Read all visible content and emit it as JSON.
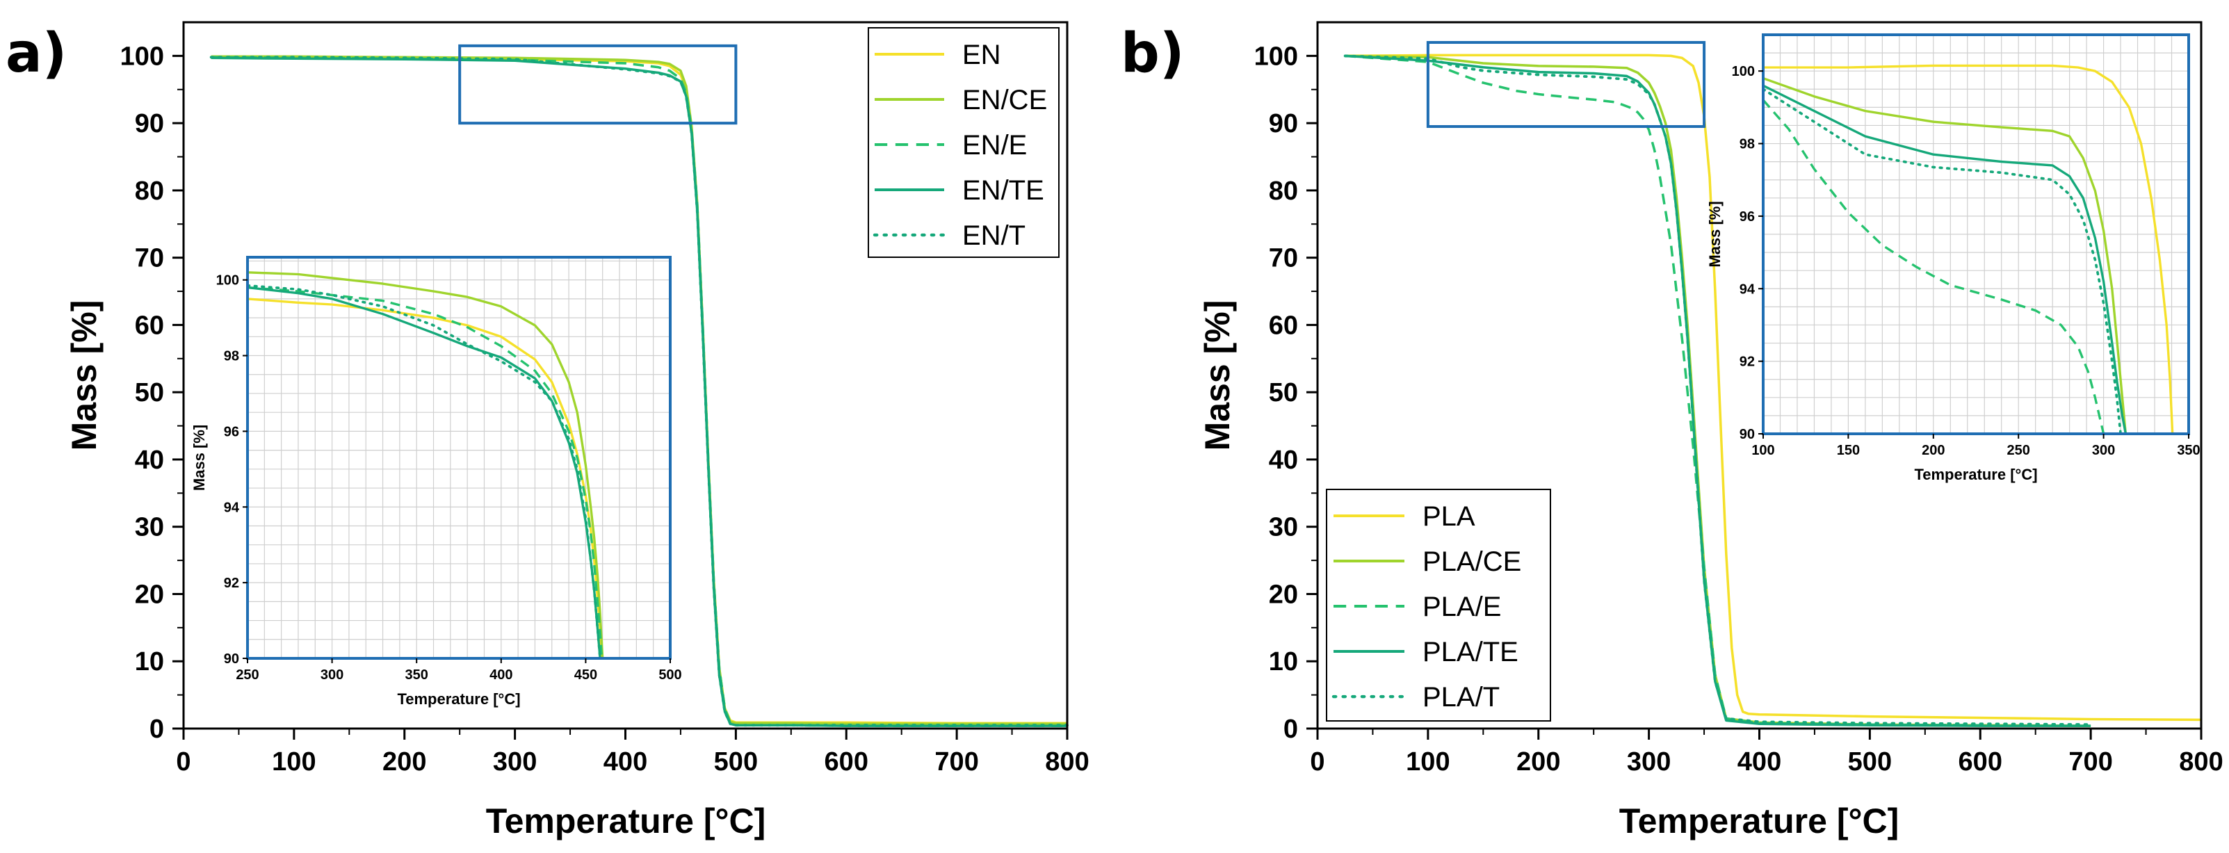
{
  "colors": {
    "yellow": "#f5e02a",
    "lightgreen": "#9fd42c",
    "green": "#25c26e",
    "teal": "#15a87a",
    "inset_frame": "#1f6eb3"
  },
  "chart_data": [
    {
      "type": "line",
      "panel_label": "a)",
      "xlabel": "Temperature [°C]",
      "ylabel": "Mass [%]",
      "xlim": [
        0,
        800
      ],
      "ylim": [
        0,
        105
      ],
      "xticks": [
        0,
        100,
        200,
        300,
        400,
        500,
        600,
        700,
        800
      ],
      "yticks": [
        0,
        10,
        20,
        30,
        40,
        50,
        60,
        70,
        80,
        90,
        100
      ],
      "legend_position": "top-right",
      "zoom_region": {
        "x": [
          250,
          500
        ],
        "y": [
          90,
          101.5
        ]
      },
      "series": [
        {
          "name": "EN",
          "style": "solid",
          "color": "yellow",
          "x": [
            25,
            100,
            200,
            300,
            400,
            430,
            440,
            450,
            455,
            460,
            465,
            470,
            475,
            480,
            485,
            490,
            495,
            500,
            550,
            600,
            700,
            800
          ],
          "y": [
            99.8,
            99.7,
            99.6,
            99.5,
            99.2,
            98.9,
            98.5,
            97.2,
            95,
            89,
            78,
            60,
            40,
            22,
            9,
            3,
            1.2,
            0.9,
            0.9,
            0.9,
            0.8,
            0.8
          ]
        },
        {
          "name": "EN/CE",
          "style": "solid",
          "color": "lightgreen",
          "x": [
            25,
            100,
            200,
            300,
            400,
            430,
            440,
            450,
            455,
            460,
            465,
            470,
            475,
            480,
            485,
            490,
            495,
            500,
            550,
            600,
            700,
            800
          ],
          "y": [
            99.9,
            99.9,
            99.8,
            99.7,
            99.4,
            99.1,
            98.8,
            97.8,
            95.5,
            89.5,
            78,
            60,
            40,
            22,
            9,
            3,
            1,
            0.8,
            0.8,
            0.7,
            0.7,
            0.7
          ]
        },
        {
          "name": "EN/E",
          "style": "dashed",
          "color": "green",
          "x": [
            25,
            100,
            200,
            300,
            400,
            430,
            440,
            450,
            455,
            460,
            465,
            470,
            475,
            480,
            485,
            490,
            495,
            500,
            550,
            600,
            700,
            800
          ],
          "y": [
            99.8,
            99.7,
            99.6,
            99.4,
            98.9,
            98.3,
            97.8,
            96.6,
            94.5,
            89,
            78,
            60,
            40,
            22,
            9,
            3,
            0.8,
            0.5,
            0.5,
            0.4,
            0.4,
            0.4
          ]
        },
        {
          "name": "EN/TE",
          "style": "solid",
          "color": "teal",
          "x": [
            25,
            100,
            200,
            300,
            400,
            430,
            440,
            450,
            455,
            460,
            465,
            470,
            475,
            480,
            485,
            490,
            495,
            500,
            550,
            600,
            700,
            800
          ],
          "y": [
            99.7,
            99.6,
            99.5,
            99.3,
            98.1,
            97.5,
            97.1,
            96.2,
            94,
            88.5,
            77,
            59,
            39,
            21,
            8,
            2.5,
            0.7,
            0.5,
            0.5,
            0.4,
            0.4,
            0.4
          ]
        },
        {
          "name": "EN/T",
          "style": "dotted",
          "color": "teal",
          "x": [
            25,
            100,
            200,
            300,
            400,
            430,
            440,
            450,
            455,
            460,
            465,
            470,
            475,
            480,
            485,
            490,
            495,
            500,
            550,
            600,
            700,
            800
          ],
          "y": [
            99.8,
            99.8,
            99.7,
            99.5,
            98.0,
            97.4,
            97.0,
            96.2,
            94,
            88.5,
            77,
            59,
            39,
            21,
            8,
            2.5,
            0.7,
            0.5,
            0.5,
            0.5,
            0.5,
            0.5
          ]
        }
      ],
      "inset": {
        "xlabel": "Temperature [°C]",
        "ylabel": "Mass [%]",
        "xlim": [
          250,
          500
        ],
        "ylim": [
          90,
          100.6
        ],
        "xticks": [
          250,
          300,
          350,
          400,
          450,
          500
        ],
        "yticks": [
          90,
          92,
          94,
          96,
          98,
          100
        ],
        "series": [
          {
            "name": "EN",
            "style": "solid",
            "color": "yellow",
            "x": [
              250,
              280,
              300,
              330,
              360,
              380,
              400,
              420,
              430,
              440,
              445,
              450,
              453,
              455,
              457,
              458.5,
              459.5
            ],
            "y": [
              99.5,
              99.4,
              99.35,
              99.2,
              99.0,
              98.8,
              98.5,
              97.9,
              97.3,
              96.2,
              95.4,
              94.3,
              93.4,
              92.6,
              91.6,
              90.8,
              90
            ]
          },
          {
            "name": "EN/CE",
            "style": "solid",
            "color": "lightgreen",
            "x": [
              250,
              280,
              300,
              330,
              360,
              380,
              400,
              420,
              430,
              440,
              445,
              450,
              453,
              455,
              457,
              458.5,
              460
            ],
            "y": [
              100.2,
              100.15,
              100.05,
              99.9,
              99.7,
              99.55,
              99.3,
              98.8,
              98.3,
              97.3,
              96.5,
              95.1,
              94.0,
              93.2,
              92.2,
              91.2,
              90
            ]
          },
          {
            "name": "EN/E",
            "style": "dashed",
            "color": "green",
            "x": [
              250,
              280,
              300,
              330,
              360,
              380,
              400,
              420,
              430,
              440,
              445,
              450,
              453,
              455,
              457,
              458.5,
              459.5
            ],
            "y": [
              99.8,
              99.7,
              99.6,
              99.45,
              99.1,
              98.75,
              98.25,
              97.6,
              97.0,
              96.0,
              95.3,
              94.2,
              93.3,
              92.5,
              91.5,
              90.7,
              90
            ]
          },
          {
            "name": "EN/TE",
            "style": "solid",
            "color": "teal",
            "x": [
              250,
              280,
              300,
              330,
              360,
              380,
              400,
              420,
              430,
              440,
              445,
              450,
              453,
              455,
              457,
              458.5
            ],
            "y": [
              99.8,
              99.65,
              99.5,
              99.1,
              98.6,
              98.25,
              97.95,
              97.4,
              96.8,
              95.7,
              94.9,
              93.6,
              92.6,
              91.8,
              90.8,
              90
            ]
          },
          {
            "name": "EN/T",
            "style": "dotted",
            "color": "teal",
            "x": [
              250,
              280,
              300,
              330,
              360,
              380,
              400,
              420,
              430,
              440,
              445,
              450,
              453,
              455,
              457,
              458.5
            ],
            "y": [
              99.85,
              99.75,
              99.6,
              99.3,
              98.8,
              98.3,
              97.85,
              97.3,
              96.8,
              95.8,
              95.0,
              93.7,
              92.6,
              91.8,
              90.8,
              90
            ]
          }
        ]
      }
    },
    {
      "type": "line",
      "panel_label": "b)",
      "xlabel": "Temperature [°C]",
      "ylabel": "Mass [%]",
      "xlim": [
        0,
        800
      ],
      "ylim": [
        0,
        105
      ],
      "xticks": [
        0,
        100,
        200,
        300,
        400,
        500,
        600,
        700,
        800
      ],
      "yticks": [
        0,
        10,
        20,
        30,
        40,
        50,
        60,
        70,
        80,
        90,
        100
      ],
      "legend_position": "bottom-left",
      "zoom_region": {
        "x": [
          100,
          350
        ],
        "y": [
          89.5,
          102
        ]
      },
      "series": [
        {
          "name": "PLA",
          "style": "solid",
          "color": "yellow",
          "x": [
            25,
            100,
            200,
            300,
            320,
            330,
            340,
            345,
            350,
            355,
            360,
            365,
            370,
            375,
            380,
            385,
            390,
            400,
            500,
            600,
            700,
            800
          ],
          "y": [
            100,
            100.1,
            100.1,
            100.1,
            100.0,
            99.7,
            98.5,
            96,
            91,
            82,
            65,
            45,
            26,
            12,
            5,
            2.5,
            2.2,
            2.1,
            1.8,
            1.6,
            1.4,
            1.3
          ]
        },
        {
          "name": "PLA/CE",
          "style": "solid",
          "color": "lightgreen",
          "x": [
            25,
            100,
            150,
            200,
            250,
            280,
            290,
            300,
            305,
            310,
            315,
            320,
            325,
            330,
            335,
            340,
            345,
            350,
            360,
            370,
            400,
            500,
            600,
            700
          ],
          "y": [
            100,
            99.8,
            98.9,
            98.5,
            98.4,
            98.2,
            97.5,
            96,
            94.5,
            92.5,
            90,
            86,
            79,
            70,
            60,
            48,
            36,
            24,
            8,
            1.5,
            0.9,
            0.6,
            0.5,
            0.4
          ]
        },
        {
          "name": "PLA/E",
          "style": "dashed",
          "color": "green",
          "x": [
            25,
            100,
            130,
            150,
            180,
            200,
            230,
            250,
            270,
            285,
            290,
            295,
            300,
            305,
            310,
            320,
            330,
            340,
            350,
            360,
            370,
            400,
            500,
            600
          ],
          "y": [
            100,
            99.1,
            97.2,
            96.0,
            94.8,
            94.3,
            93.8,
            93.5,
            93.1,
            92.2,
            91.6,
            90.6,
            89,
            86,
            82,
            72,
            58,
            42,
            24,
            8,
            1.5,
            0.8,
            0.6,
            0.5
          ]
        },
        {
          "name": "PLA/TE",
          "style": "solid",
          "color": "teal",
          "x": [
            25,
            100,
            150,
            200,
            250,
            280,
            290,
            300,
            305,
            310,
            315,
            320,
            325,
            330,
            335,
            340,
            345,
            350,
            360,
            370,
            400,
            500,
            600,
            700
          ],
          "y": [
            100,
            99.3,
            98.3,
            97.6,
            97.4,
            97.0,
            96.2,
            94.5,
            92.8,
            90.5,
            88,
            84,
            77,
            68,
            58,
            46,
            34,
            22,
            7,
            1.2,
            0.7,
            0.5,
            0.4,
            0.4
          ]
        },
        {
          "name": "PLA/T",
          "style": "dotted",
          "color": "teal",
          "x": [
            25,
            100,
            130,
            150,
            200,
            250,
            280,
            290,
            300,
            305,
            310,
            315,
            320,
            325,
            330,
            335,
            340,
            345,
            350,
            360,
            370,
            400,
            500,
            700
          ],
          "y": [
            100,
            99.6,
            98.3,
            97.8,
            97.2,
            96.9,
            96.5,
            95.8,
            94.3,
            92.8,
            90.5,
            88,
            84,
            77,
            68,
            58,
            46,
            34,
            22,
            7,
            1.5,
            1.0,
            0.8,
            0.6
          ]
        }
      ],
      "inset": {
        "xlabel": "Temperature [°C]",
        "ylabel": "Mass [%]",
        "xlim": [
          100,
          350
        ],
        "ylim": [
          90,
          101
        ],
        "xticks": [
          100,
          150,
          200,
          250,
          300,
          350
        ],
        "yticks": [
          90,
          92,
          94,
          96,
          98,
          100
        ],
        "series": [
          {
            "name": "PLA",
            "style": "solid",
            "color": "yellow",
            "x": [
              100,
              150,
              200,
              250,
              270,
              285,
              295,
              305,
              315,
              322,
              328,
              333,
              337,
              339,
              340.5
            ],
            "y": [
              100.1,
              100.1,
              100.15,
              100.15,
              100.15,
              100.1,
              100.0,
              99.7,
              99.0,
              98.0,
              96.5,
              94.8,
              93.0,
              91.5,
              90
            ]
          },
          {
            "name": "PLA/CE",
            "style": "solid",
            "color": "lightgreen",
            "x": [
              100,
              130,
              160,
              200,
              240,
              270,
              280,
              288,
              295,
              300,
              305,
              308,
              311,
              313
            ],
            "y": [
              99.8,
              99.3,
              98.9,
              98.6,
              98.45,
              98.35,
              98.2,
              97.6,
              96.7,
              95.6,
              94.0,
              92.5,
              91.0,
              90
            ]
          },
          {
            "name": "PLA/E",
            "style": "dashed",
            "color": "green",
            "x": [
              100,
              115,
              130,
              150,
              170,
              190,
              210,
              240,
              260,
              275,
              285,
              291,
              295,
              298,
              300
            ],
            "y": [
              99.2,
              98.4,
              97.3,
              96.1,
              95.2,
              94.6,
              94.1,
              93.7,
              93.4,
              93.0,
              92.4,
              91.7,
              91.0,
              90.4,
              90
            ]
          },
          {
            "name": "PLA/TE",
            "style": "solid",
            "color": "teal",
            "x": [
              100,
              130,
              160,
              200,
              240,
              270,
              280,
              288,
              295,
              300,
              305,
              308,
              311,
              313
            ],
            "y": [
              99.6,
              98.9,
              98.2,
              97.7,
              97.5,
              97.4,
              97.1,
              96.5,
              95.4,
              94.2,
              92.5,
              91.4,
              90.5,
              90
            ]
          },
          {
            "name": "PLA/T",
            "style": "dotted",
            "color": "teal",
            "x": [
              100,
              130,
              160,
              200,
              240,
              270,
              280,
              288,
              295,
              300,
              305,
              308,
              310
            ],
            "y": [
              99.5,
              98.6,
              97.7,
              97.35,
              97.2,
              97.0,
              96.6,
              95.9,
              94.8,
              93.6,
              92.0,
              90.9,
              90
            ]
          }
        ]
      }
    }
  ]
}
